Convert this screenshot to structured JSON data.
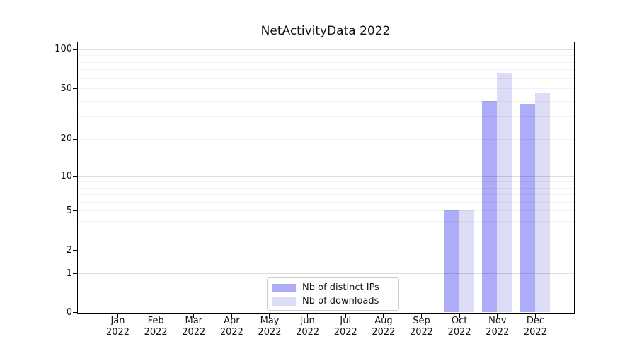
{
  "chart_data": {
    "type": "bar",
    "title": "NetActivityData 2022",
    "categories": [
      "Jan",
      "Feb",
      "Mar",
      "Apr",
      "May",
      "Jun",
      "Jul",
      "Aug",
      "Sep",
      "Oct",
      "Nov",
      "Dec"
    ],
    "category_sublabel": "2022",
    "series": [
      {
        "name": "Nb of distinct IPs",
        "color": "#acacf8",
        "values": [
          0,
          0,
          0,
          0,
          0,
          0,
          0,
          0,
          0,
          5,
          40,
          38
        ]
      },
      {
        "name": "Nb of downloads",
        "color": "#dcdcf7",
        "values": [
          0,
          0,
          0,
          0,
          0,
          0,
          0,
          0,
          0,
          5,
          66,
          46
        ]
      }
    ],
    "xlabel": "",
    "ylabel": "",
    "yscale": "log10(1+x)",
    "ylim": [
      0,
      113
    ],
    "ytick_values": [
      0,
      1,
      2,
      5,
      10,
      20,
      50,
      100
    ],
    "ytick_labels": [
      "0",
      "1",
      "2",
      "5",
      "10",
      "20",
      "50",
      "100"
    ],
    "major_gridlines": [
      1,
      10,
      100
    ],
    "minor_gridlines": [
      2,
      3,
      4,
      5,
      6,
      7,
      8,
      9,
      20,
      30,
      40,
      50,
      60,
      70,
      80,
      90
    ],
    "grid": "horizontal",
    "colors": {
      "spine": "#000000",
      "major_grid": "rgba(0,0,0,0.13)",
      "minor_grid": "rgba(0,0,0,0.05)",
      "background": "#ffffff",
      "legend_border": "#cccccc"
    },
    "legend": {
      "position": "lower center",
      "entries": [
        "Nb of distinct IPs",
        "Nb of downloads"
      ]
    }
  }
}
